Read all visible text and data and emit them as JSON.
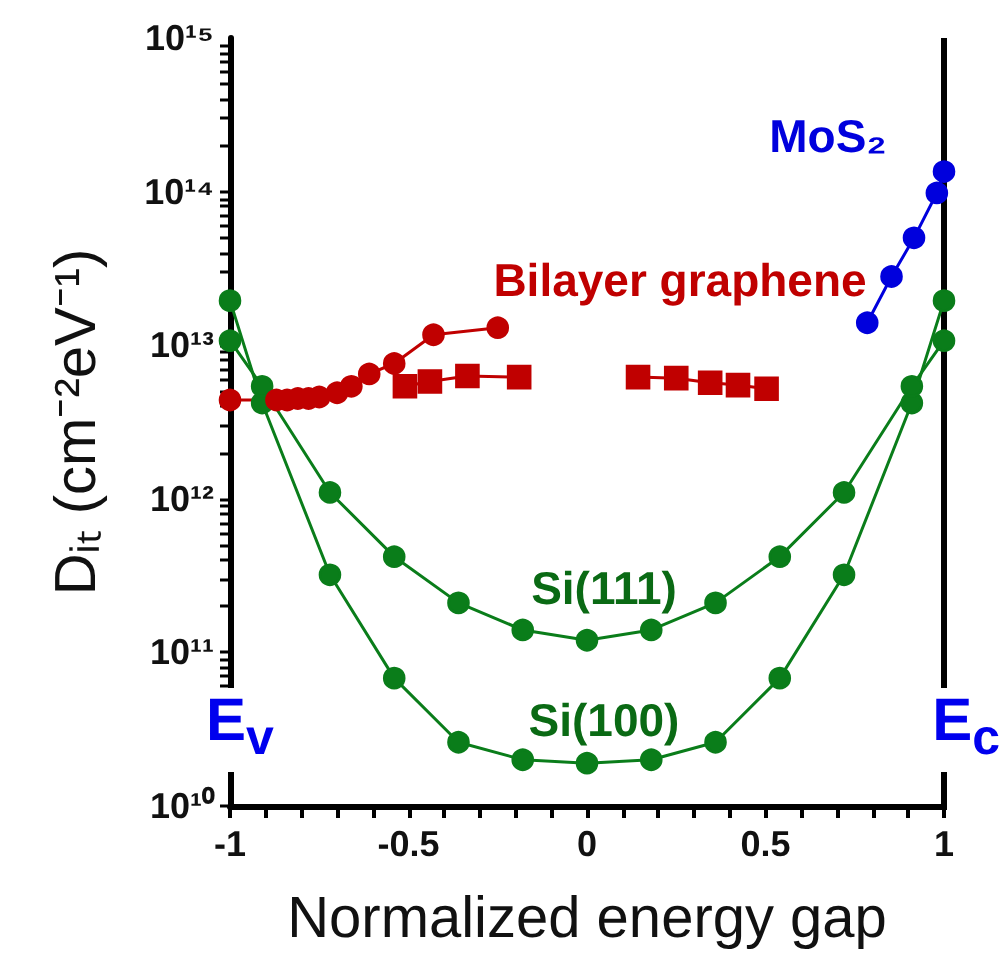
{
  "chart_data": {
    "type": "line",
    "xlabel": "Normalized energy gap",
    "ylabel": "Dᵢₜ (cm⁻²eV⁻¹)",
    "log": "y",
    "xlim": [
      -1,
      1
    ],
    "ylim": [
      10000000000.0,
      1000000000000000.0
    ],
    "xticks": [
      -1,
      {
        "value": -0.9,
        "label": null
      },
      {
        "value": -0.8,
        "label": null
      },
      {
        "value": -0.7,
        "label": null
      },
      {
        "value": -0.6,
        "label": null
      },
      -0.5,
      {
        "value": -0.4,
        "label": null
      },
      {
        "value": -0.3,
        "label": null
      },
      {
        "value": -0.2,
        "label": null
      },
      {
        "value": -0.1,
        "label": null
      },
      0,
      {
        "value": 0.1,
        "label": null
      },
      {
        "value": 0.2,
        "label": null
      },
      {
        "value": 0.3,
        "label": null
      },
      {
        "value": 0.4,
        "label": null
      },
      0.5,
      {
        "value": 0.6,
        "label": null
      },
      {
        "value": 0.7,
        "label": null
      },
      {
        "value": 0.8,
        "label": null
      },
      {
        "value": 0.9,
        "label": null
      },
      1
    ],
    "yticks": [
      {
        "value": 10000000000.0,
        "label": "10¹⁰"
      },
      {
        "value": 20000000000.0,
        "label": null
      },
      {
        "value": 30000000000.0,
        "label": null
      },
      {
        "value": 40000000000.0,
        "label": null
      },
      {
        "value": 50000000000.0,
        "label": null
      },
      {
        "value": 60000000000.0,
        "label": null
      },
      {
        "value": 70000000000.0,
        "label": null
      },
      {
        "value": 80000000000.0,
        "label": null
      },
      {
        "value": 90000000000.0,
        "label": null
      },
      {
        "value": 100000000000.0,
        "label": "10¹¹"
      },
      {
        "value": 200000000000.0,
        "label": null
      },
      {
        "value": 300000000000.0,
        "label": null
      },
      {
        "value": 400000000000.0,
        "label": null
      },
      {
        "value": 500000000000.0,
        "label": null
      },
      {
        "value": 600000000000.0,
        "label": null
      },
      {
        "value": 700000000000.0,
        "label": null
      },
      {
        "value": 800000000000.0,
        "label": null
      },
      {
        "value": 900000000000.0,
        "label": null
      },
      {
        "value": 1000000000000.0,
        "label": "10¹²"
      },
      {
        "value": 2000000000000.0,
        "label": null
      },
      {
        "value": 3000000000000.0,
        "label": null
      },
      {
        "value": 4000000000000.0,
        "label": null
      },
      {
        "value": 5000000000000.0,
        "label": null
      },
      {
        "value": 6000000000000.0,
        "label": null
      },
      {
        "value": 7000000000000.0,
        "label": null
      },
      {
        "value": 8000000000000.0,
        "label": null
      },
      {
        "value": 9000000000000.0,
        "label": null
      },
      {
        "value": 10000000000000.0,
        "label": "10¹³"
      },
      {
        "value": 20000000000000.0,
        "label": null
      },
      {
        "value": 30000000000000.0,
        "label": null
      },
      {
        "value": 40000000000000.0,
        "label": null
      },
      {
        "value": 50000000000000.0,
        "label": null
      },
      {
        "value": 60000000000000.0,
        "label": null
      },
      {
        "value": 70000000000000.0,
        "label": null
      },
      {
        "value": 80000000000000.0,
        "label": null
      },
      {
        "value": 90000000000000.0,
        "label": null
      },
      {
        "value": 100000000000000.0,
        "label": "10¹⁴"
      },
      {
        "value": 200000000000000.0,
        "label": null
      },
      {
        "value": 300000000000000.0,
        "label": null
      },
      {
        "value": 400000000000000.0,
        "label": null
      },
      {
        "value": 500000000000000.0,
        "label": null
      },
      {
        "value": 600000000000000.0,
        "label": null
      },
      {
        "value": 700000000000000.0,
        "label": null
      },
      {
        "value": 800000000000000.0,
        "label": null
      },
      {
        "value": 900000000000000.0,
        "label": null
      },
      {
        "value": 1000000000000000.0,
        "label": "10¹⁵"
      }
    ],
    "grid": false,
    "legend": false,
    "line_style": "solid",
    "series": [
      {
        "name": "Si(100)",
        "color": "#0a7d1a",
        "marker": "circle",
        "x": [
          -1,
          -0.91,
          -0.72,
          -0.54,
          -0.36,
          -0.18,
          0,
          0.18,
          0.36,
          0.54,
          0.72,
          0.91,
          1
        ],
        "values": [
          19500000000000.0,
          4200000000000.0,
          320000000000.0,
          68000000000.0,
          26000000000.0,
          20000000000.0,
          19000000000.0,
          20000000000.0,
          26000000000.0,
          68000000000.0,
          320000000000.0,
          4200000000000.0,
          19500000000000.0
        ]
      },
      {
        "name": "Si(111)",
        "color": "#0a7d1a",
        "marker": "circle",
        "x": [
          -1,
          -0.91,
          -0.72,
          -0.54,
          -0.36,
          -0.18,
          0,
          0.18,
          0.36,
          0.54,
          0.72,
          0.91,
          1
        ],
        "values": [
          10700000000000.0,
          5400000000000.0,
          1100000000000.0,
          420000000000.0,
          210000000000.0,
          140000000000.0,
          120000000000.0,
          140000000000.0,
          210000000000.0,
          420000000000.0,
          1100000000000.0,
          5400000000000.0,
          10700000000000.0
        ]
      },
      {
        "name": "Bilayer graphene",
        "color": "#c00000",
        "marker": "circle",
        "x": [
          -1,
          -0.87,
          -0.84,
          -0.81,
          -0.78,
          -0.75,
          -0.7,
          -0.66,
          -0.61,
          -0.54,
          -0.43,
          -0.25
        ],
        "values": [
          4400000000000.0,
          4400000000000.0,
          4400000000000.0,
          4500000000000.0,
          4500000000000.0,
          4600000000000.0,
          4900000000000.0,
          5400000000000.0,
          6500000000000.0,
          7600000000000.0,
          11700000000000.0,
          13000000000000.0
        ]
      },
      {
        "color": "#c00000",
        "marker": "square",
        "x": [
          -0.51,
          -0.44,
          -0.335,
          -0.19
        ],
        "values": [
          5400000000000.0,
          5800000000000.0,
          6300000000000.0,
          6200000000000.0
        ]
      },
      {
        "color": "#c00000",
        "marker": "square",
        "x": [
          0.143,
          0.25,
          0.345,
          0.423,
          0.503
        ],
        "values": [
          6200000000000.0,
          6100000000000.0,
          5700000000000.0,
          5500000000000.0,
          5200000000000.0
        ]
      },
      {
        "name": "MoS₂",
        "color": "#0000dd",
        "marker": "circle",
        "x": [
          0.785,
          0.853,
          0.916,
          0.98,
          1
        ],
        "values": [
          14000000000000.0,
          28000000000000.0,
          50000000000000.0,
          98000000000000.0,
          135000000000000.0
        ]
      }
    ],
    "annotations": [
      "E$_{v}$",
      "E$_{c}$"
    ]
  }
}
